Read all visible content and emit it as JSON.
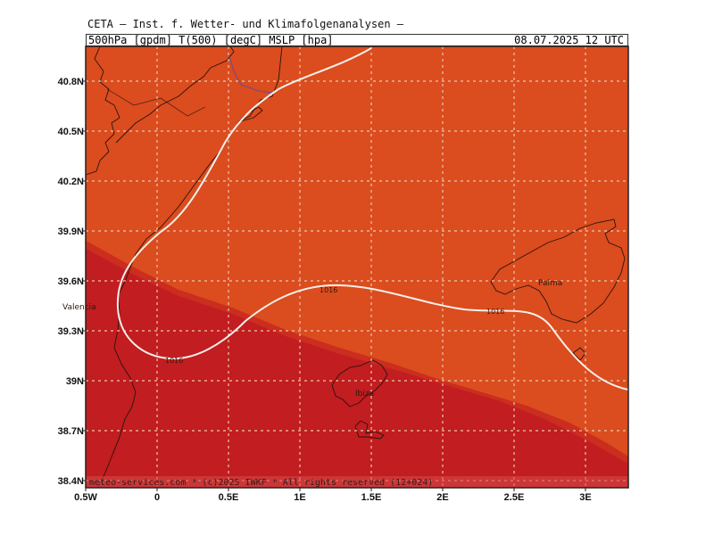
{
  "header": {
    "title": "CETA — Inst. f. Wetter- und Klimafolgenanalysen —",
    "params": "500hPa [gpdm] T(500) [degC] MSLP [hpa]",
    "valid_time": "08.07.2025 12 UTC"
  },
  "map": {
    "lat_labels": [
      "40.8N",
      "40.5N",
      "40.2N",
      "39.9N",
      "39.6N",
      "39.3N",
      "39N",
      "38.7N",
      "38.4N"
    ],
    "lon_labels": [
      "0.5W",
      "0",
      "0.5E",
      "1E",
      "1.5E",
      "2E",
      "2.5E",
      "3E"
    ],
    "isobar_labels": [
      "1016",
      "1016",
      "1016"
    ],
    "cities": {
      "valencia": "Valencia",
      "ibiza": "Ibiza",
      "palma": "Palma"
    },
    "footer": "meteo-services.com * (c)2025 IWKF * All rights reserved (12+024)",
    "colors": {
      "warm_zone": "#db4c1e",
      "hot_zone": "#c21d20",
      "isobar": "#f5f0ea",
      "grid": "#e8c8b0",
      "coast": "#2a1410"
    }
  }
}
